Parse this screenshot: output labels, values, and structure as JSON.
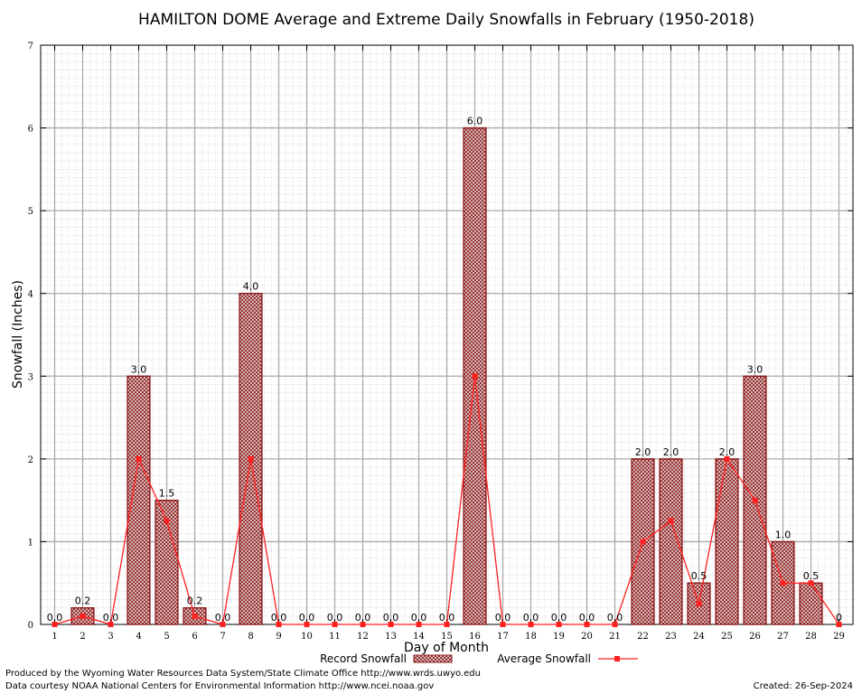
{
  "chart_data": {
    "type": "bar",
    "title": "HAMILTON DOME Average and Extreme Daily Snowfalls in February (1950-2018)",
    "xlabel": "Day of Month",
    "ylabel": "Snowfall (Inches)",
    "ylim": [
      0,
      7
    ],
    "xlim": [
      0.5,
      29.5
    ],
    "yticks": [
      "0",
      "1",
      "2",
      "3",
      "4",
      "5",
      "6",
      "7"
    ],
    "categories": [
      "1",
      "2",
      "3",
      "4",
      "5",
      "6",
      "7",
      "8",
      "9",
      "10",
      "11",
      "12",
      "13",
      "14",
      "15",
      "16",
      "17",
      "18",
      "19",
      "20",
      "21",
      "22",
      "23",
      "24",
      "25",
      "26",
      "27",
      "28",
      "29"
    ],
    "series": [
      {
        "name": "Record Snowfall",
        "kind": "bar",
        "color": "#8b1a1a",
        "values": [
          0.0,
          0.2,
          0.0,
          3.0,
          1.5,
          0.2,
          0.0,
          4.0,
          0.0,
          0.0,
          0.0,
          0.0,
          0.0,
          0.0,
          0.0,
          6.0,
          0.0,
          0.0,
          0.0,
          0.0,
          0.0,
          2.0,
          2.0,
          0.5,
          2.0,
          3.0,
          1.0,
          0.5,
          0.0
        ],
        "labels": [
          "0.0",
          "0.2",
          "0.0",
          "3.0",
          "1.5",
          "0.2",
          "0.0",
          "4.0",
          "0.0",
          "0.0",
          "0.0",
          "0.0",
          "0.0",
          "0.0",
          "0.0",
          "6.0",
          "0.0",
          "0.0",
          "0.0",
          "0.0",
          "0.0",
          "2.0",
          "2.0",
          "0.5",
          "2.0",
          "3.0",
          "1.0",
          "0.5",
          "0"
        ]
      },
      {
        "name": "Average Snowfall",
        "kind": "line",
        "color": "#ff2020",
        "values": [
          0.0,
          0.1,
          0.0,
          2.0,
          1.25,
          0.1,
          0.0,
          2.0,
          0.0,
          0.0,
          0.0,
          0.0,
          0.0,
          0.0,
          0.0,
          3.0,
          0.0,
          0.0,
          0.0,
          0.0,
          0.0,
          1.0,
          1.25,
          0.25,
          2.0,
          1.5,
          0.5,
          0.5,
          0.0
        ]
      }
    ],
    "grid": true,
    "legend_position": "bottom-center"
  },
  "footer": {
    "produced_by": "Produced by the Wyoming Water Resources Data System/State Climate Office http://www.wrds.uwyo.edu",
    "courtesy": "Data courtesy NOAA National Centers for Environmental Information http://www.ncei.noaa.gov",
    "created": "Created:  26-Sep-2024"
  }
}
